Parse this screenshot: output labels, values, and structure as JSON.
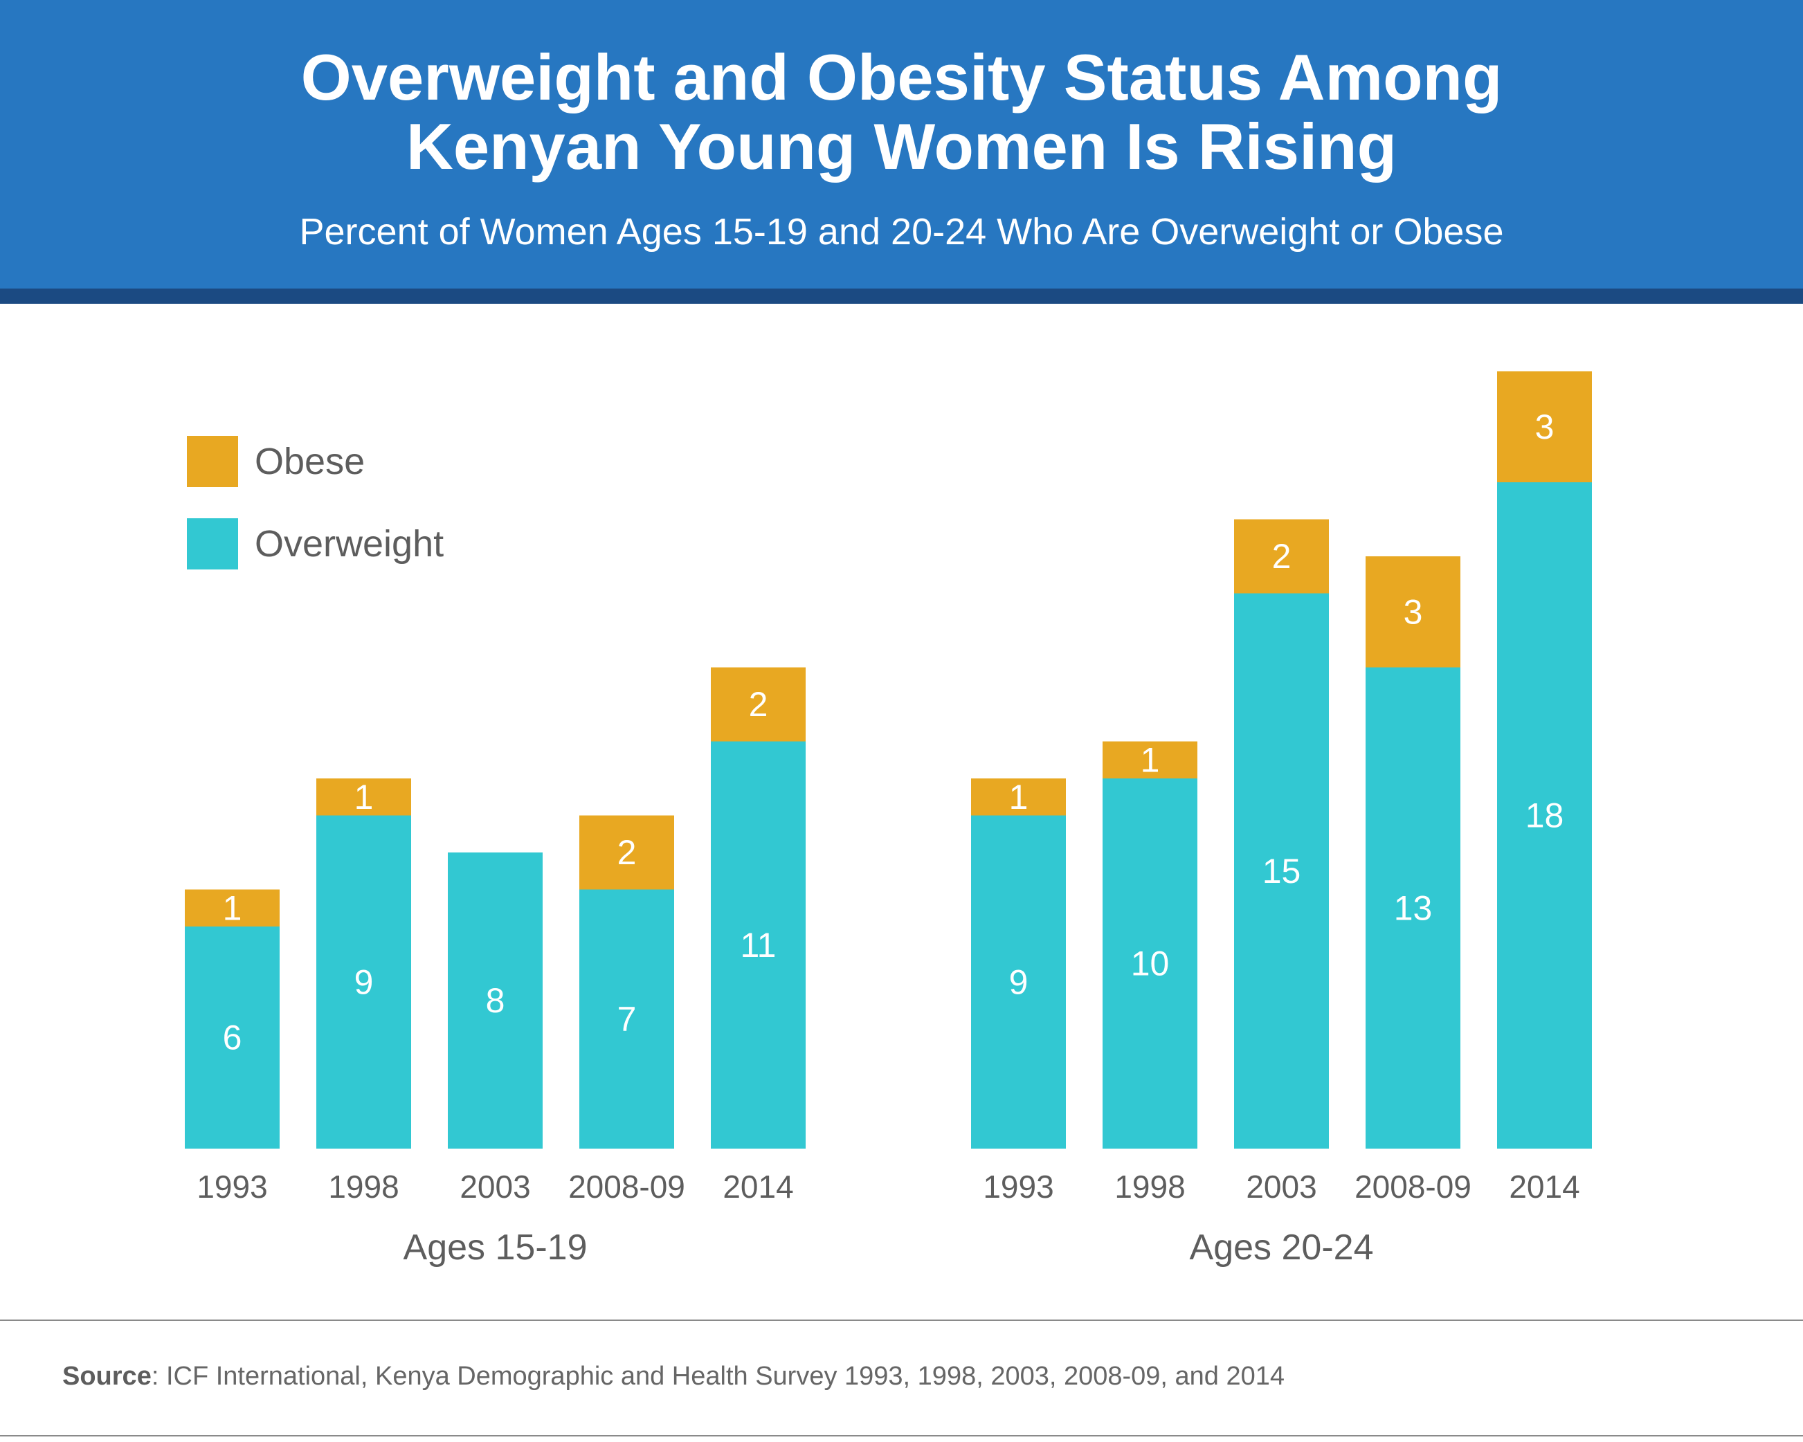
{
  "header": {
    "title_line1": "Overweight and Obesity Status Among",
    "title_line2": "Kenyan Young Women Is Rising",
    "subtitle": "Percent of Women Ages 15-19 and 20-24 Who Are Overweight or Obese"
  },
  "legend": [
    {
      "label": "Obese",
      "color": "#e8a822"
    },
    {
      "label": "Overweight",
      "color": "#32c8d2"
    }
  ],
  "colors": {
    "obese": "#e8a822",
    "overweight": "#32c8d2",
    "tick_text": "#5d5d5d",
    "bar_label": "#ffffff"
  },
  "chart_data": [
    {
      "type": "bar",
      "stacked": true,
      "group_label": "Ages 15-19",
      "categories": [
        "1993",
        "1998",
        "2003",
        "2008-09",
        "2014"
      ],
      "series": [
        {
          "name": "Overweight",
          "values": [
            6,
            9,
            8,
            7,
            11
          ]
        },
        {
          "name": "Obese",
          "values": [
            1,
            1,
            0,
            2,
            2
          ]
        }
      ],
      "grid": false,
      "legend_position": "top-left"
    },
    {
      "type": "bar",
      "stacked": true,
      "group_label": "Ages 20-24",
      "categories": [
        "1993",
        "1998",
        "2003",
        "2008-09",
        "2014"
      ],
      "series": [
        {
          "name": "Overweight",
          "values": [
            9,
            10,
            15,
            13,
            18
          ]
        },
        {
          "name": "Obese",
          "values": [
            1,
            1,
            2,
            3,
            3
          ]
        }
      ],
      "grid": false
    }
  ],
  "footer": {
    "source_label": "Source",
    "source_text": ": ICF International, Kenya Demographic and Health Survey 1993, 1998, 2003, 2008-09, and 2014"
  }
}
